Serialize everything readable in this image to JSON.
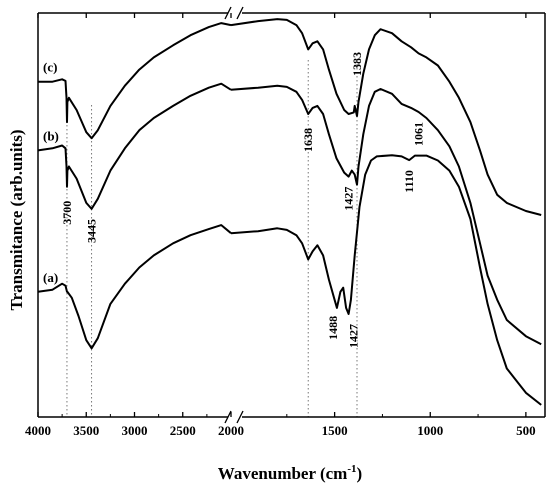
{
  "chart_data": {
    "type": "line",
    "xlabel": "Wavenumber (cm",
    "xlabel_sup": "-1",
    "xlabel_end": ")",
    "ylabel": "Transmitance (arb.units)",
    "axis_break": true,
    "x_segments": [
      {
        "xlim": [
          4000,
          2000
        ],
        "ticks": [
          4000,
          3500,
          3000,
          2500
        ]
      },
      {
        "xlim": [
          2000,
          400
        ],
        "ticks": [
          2000,
          1500,
          1000,
          500
        ]
      }
    ],
    "tick_labels": [
      "4000",
      "3500",
      "3000",
      "2500",
      "2000",
      "1500",
      "1000",
      "500"
    ],
    "ylim": [
      0,
      100
    ],
    "grid": false,
    "guide_lines": [
      3700,
      3445,
      1638,
      1383
    ],
    "series": [
      {
        "name": "(c)",
        "points": [
          [
            4000,
            83
          ],
          [
            3850,
            83
          ],
          [
            3750,
            83.6
          ],
          [
            3715,
            83.2
          ],
          [
            3705,
            79
          ],
          [
            3700,
            73
          ],
          [
            3695,
            78
          ],
          [
            3680,
            79
          ],
          [
            3600,
            76
          ],
          [
            3500,
            70.5
          ],
          [
            3445,
            69
          ],
          [
            3380,
            71
          ],
          [
            3250,
            77
          ],
          [
            3100,
            82
          ],
          [
            2950,
            86
          ],
          [
            2800,
            89
          ],
          [
            2600,
            92
          ],
          [
            2420,
            94.5
          ],
          [
            2230,
            96.5
          ],
          [
            2100,
            97.5
          ],
          [
            2000,
            97
          ],
          [
            1900,
            98
          ],
          [
            1800,
            98.5
          ],
          [
            1750,
            98.3
          ],
          [
            1700,
            97
          ],
          [
            1670,
            95
          ],
          [
            1638,
            91
          ],
          [
            1615,
            92.5
          ],
          [
            1590,
            93
          ],
          [
            1560,
            91
          ],
          [
            1530,
            86
          ],
          [
            1490,
            80
          ],
          [
            1450,
            76
          ],
          [
            1427,
            75
          ],
          [
            1400,
            75.4
          ],
          [
            1395,
            77
          ],
          [
            1383,
            74.5
          ],
          [
            1375,
            78
          ],
          [
            1350,
            85
          ],
          [
            1320,
            91
          ],
          [
            1290,
            94.5
          ],
          [
            1260,
            96
          ],
          [
            1200,
            95
          ],
          [
            1150,
            93
          ],
          [
            1100,
            91.5
          ],
          [
            1061,
            90
          ],
          [
            1020,
            89
          ],
          [
            960,
            87
          ],
          [
            900,
            83
          ],
          [
            850,
            79
          ],
          [
            790,
            73
          ],
          [
            740,
            66
          ],
          [
            700,
            60
          ],
          [
            650,
            55
          ],
          [
            600,
            53
          ],
          [
            500,
            51
          ],
          [
            420,
            50
          ]
        ]
      },
      {
        "name": "(b)",
        "points": [
          [
            4000,
            66
          ],
          [
            3850,
            66.5
          ],
          [
            3750,
            67.2
          ],
          [
            3715,
            66.5
          ],
          [
            3705,
            62
          ],
          [
            3700,
            57
          ],
          [
            3695,
            61
          ],
          [
            3680,
            62
          ],
          [
            3600,
            59
          ],
          [
            3500,
            53
          ],
          [
            3445,
            51.5
          ],
          [
            3380,
            54
          ],
          [
            3250,
            61
          ],
          [
            3100,
            66.5
          ],
          [
            2950,
            71
          ],
          [
            2800,
            74
          ],
          [
            2600,
            77
          ],
          [
            2420,
            79.5
          ],
          [
            2230,
            81.5
          ],
          [
            2100,
            82.5
          ],
          [
            2000,
            81
          ],
          [
            1900,
            81.5
          ],
          [
            1800,
            82
          ],
          [
            1750,
            81.7
          ],
          [
            1700,
            80.5
          ],
          [
            1670,
            78.5
          ],
          [
            1638,
            75
          ],
          [
            1615,
            76.5
          ],
          [
            1590,
            77
          ],
          [
            1560,
            75
          ],
          [
            1530,
            70
          ],
          [
            1490,
            64
          ],
          [
            1450,
            60.5
          ],
          [
            1427,
            59.5
          ],
          [
            1410,
            61
          ],
          [
            1395,
            60
          ],
          [
            1383,
            57.5
          ],
          [
            1375,
            62
          ],
          [
            1350,
            70
          ],
          [
            1320,
            77
          ],
          [
            1290,
            80.5
          ],
          [
            1260,
            81.2
          ],
          [
            1200,
            80
          ],
          [
            1150,
            77.5
          ],
          [
            1100,
            76.5
          ],
          [
            1061,
            75.5
          ],
          [
            1020,
            74
          ],
          [
            960,
            71
          ],
          [
            900,
            67
          ],
          [
            850,
            62
          ],
          [
            790,
            53
          ],
          [
            740,
            43
          ],
          [
            700,
            35
          ],
          [
            650,
            29
          ],
          [
            600,
            24
          ],
          [
            500,
            20
          ],
          [
            420,
            18
          ]
        ]
      },
      {
        "name": "(a)",
        "points": [
          [
            4000,
            31
          ],
          [
            3850,
            31.5
          ],
          [
            3750,
            33
          ],
          [
            3715,
            32.5
          ],
          [
            3705,
            31.5
          ],
          [
            3700,
            31
          ],
          [
            3695,
            31
          ],
          [
            3650,
            29.5
          ],
          [
            3580,
            25
          ],
          [
            3500,
            19
          ],
          [
            3445,
            17
          ],
          [
            3380,
            19.5
          ],
          [
            3250,
            28
          ],
          [
            3100,
            33
          ],
          [
            2950,
            37
          ],
          [
            2800,
            40
          ],
          [
            2600,
            43
          ],
          [
            2420,
            45
          ],
          [
            2230,
            46.5
          ],
          [
            2100,
            47.5
          ],
          [
            2000,
            45.5
          ],
          [
            1900,
            46
          ],
          [
            1800,
            46.7
          ],
          [
            1750,
            46.3
          ],
          [
            1700,
            45
          ],
          [
            1670,
            43
          ],
          [
            1638,
            39
          ],
          [
            1615,
            41
          ],
          [
            1590,
            42.5
          ],
          [
            1560,
            40
          ],
          [
            1530,
            34
          ],
          [
            1500,
            29
          ],
          [
            1488,
            27
          ],
          [
            1470,
            31
          ],
          [
            1455,
            32
          ],
          [
            1440,
            27
          ],
          [
            1427,
            25.5
          ],
          [
            1415,
            29
          ],
          [
            1395,
            40
          ],
          [
            1370,
            52
          ],
          [
            1340,
            60
          ],
          [
            1310,
            63.5
          ],
          [
            1280,
            64.5
          ],
          [
            1200,
            64.8
          ],
          [
            1150,
            64.5
          ],
          [
            1110,
            63.6
          ],
          [
            1080,
            64.7
          ],
          [
            1020,
            64.7
          ],
          [
            960,
            63.5
          ],
          [
            900,
            61
          ],
          [
            850,
            57
          ],
          [
            790,
            49
          ],
          [
            740,
            37
          ],
          [
            700,
            28
          ],
          [
            650,
            19
          ],
          [
            600,
            12
          ],
          [
            500,
            6
          ],
          [
            420,
            3
          ]
        ]
      }
    ],
    "annotations": [
      {
        "text": "3700",
        "x": 3700,
        "y": 57,
        "series": "(b)"
      },
      {
        "text": "3445",
        "x": 3445,
        "y": 51.5,
        "series": "(b)"
      },
      {
        "text": "1638",
        "x": 1638,
        "y": 75,
        "series": "(b)"
      },
      {
        "text": "1383",
        "x": 1383,
        "y": 74.5,
        "series": "(c)"
      },
      {
        "text": "1427",
        "x": 1427,
        "y": 59.5,
        "series": "(b)"
      },
      {
        "text": "1061",
        "x": 1061,
        "y": 75.5,
        "series": "(b)"
      },
      {
        "text": "1110",
        "x": 1110,
        "y": 63.6,
        "series": "(a)"
      },
      {
        "text": "1488",
        "x": 1488,
        "y": 27,
        "series": "(a)"
      },
      {
        "text": "1427",
        "x": 1427,
        "y": 25.5,
        "series": "(a)"
      }
    ]
  }
}
